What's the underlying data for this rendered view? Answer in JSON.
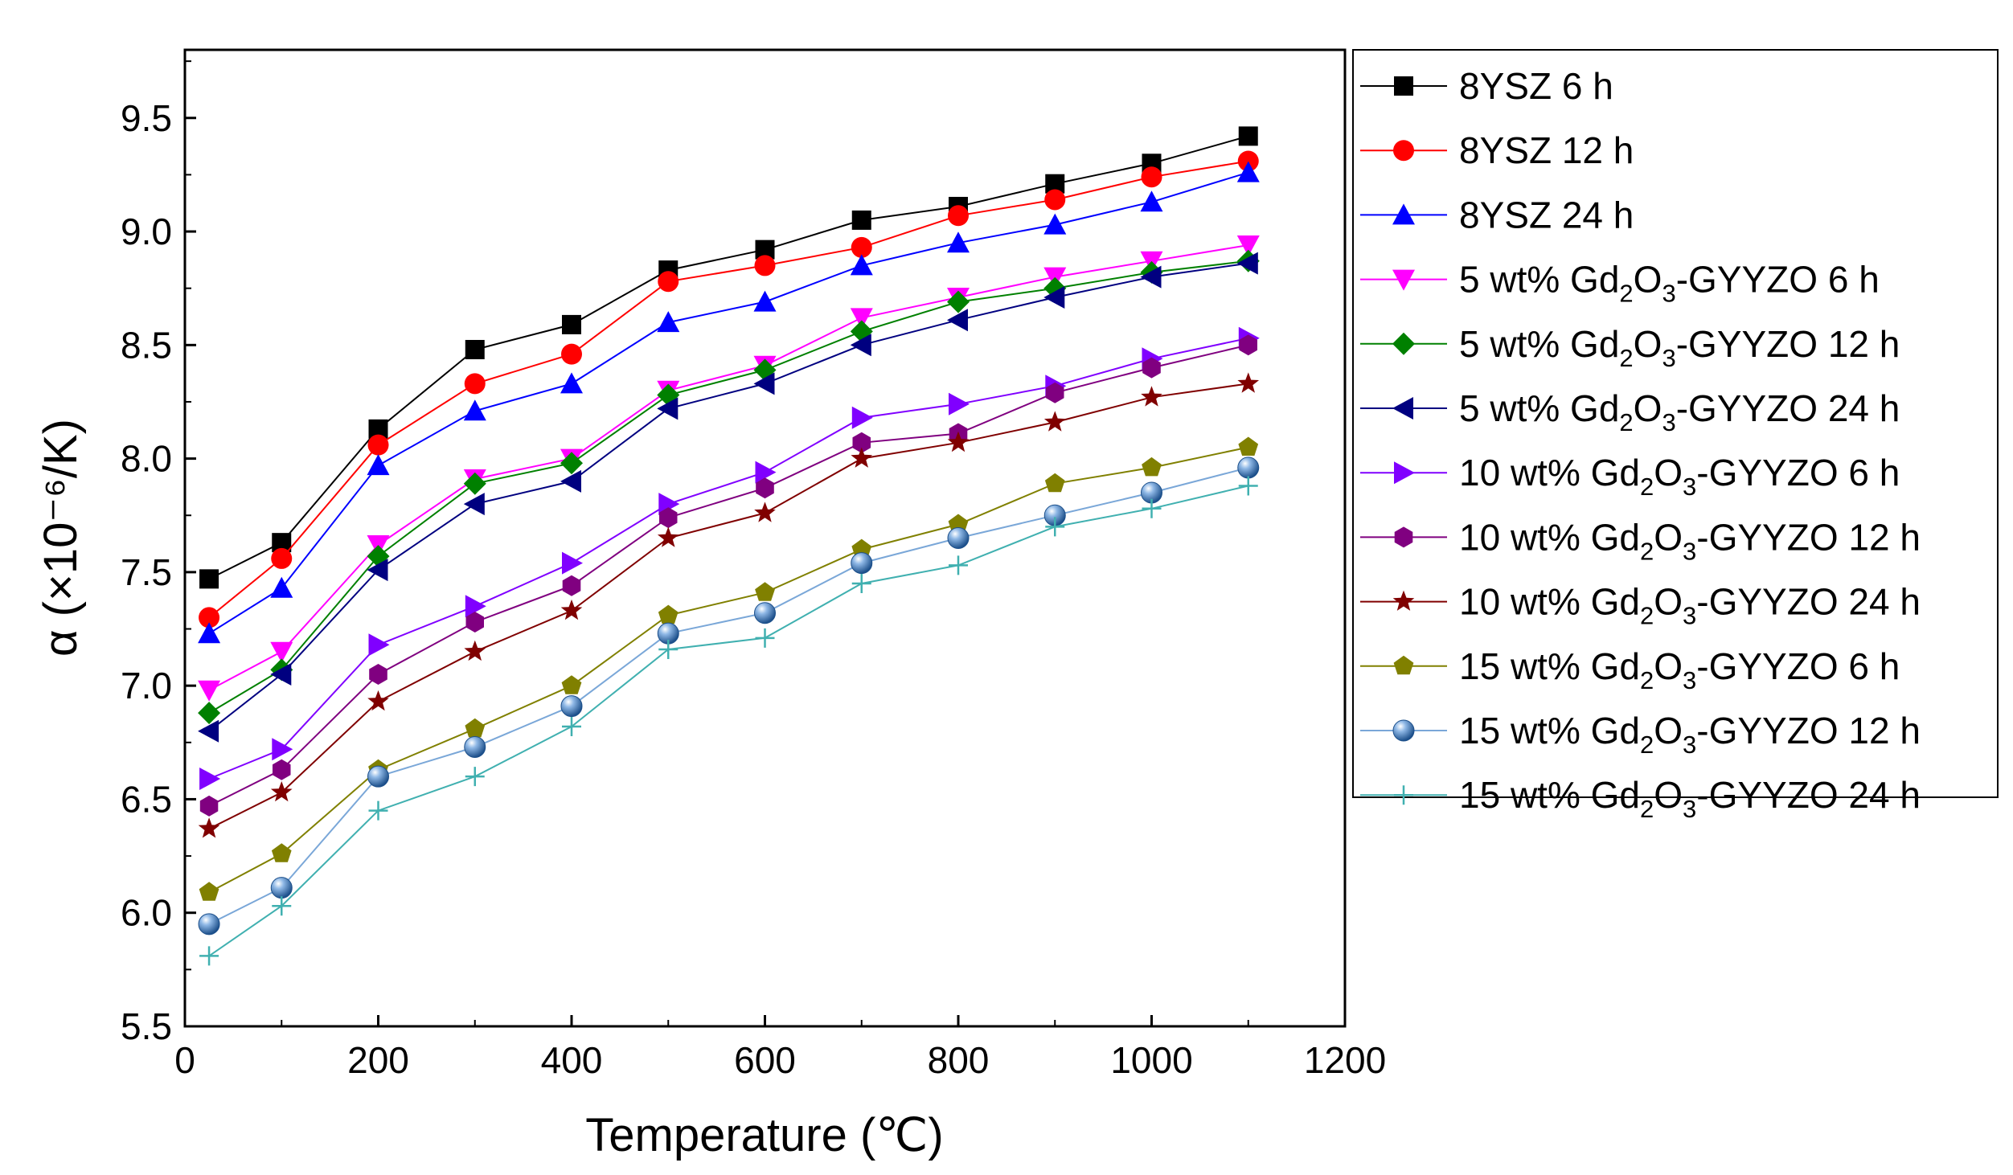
{
  "chart_data": {
    "type": "line",
    "title": "",
    "xlabel": "Temperature (℃)",
    "ylabel": "α (×10⁻⁶/K)",
    "xlim": [
      0,
      1200
    ],
    "ylim": [
      5.5,
      9.8
    ],
    "xticks": [
      0,
      200,
      400,
      600,
      800,
      1000,
      1200
    ],
    "xtick_labels": [
      "0",
      "200",
      "400",
      "600",
      "800",
      "1000",
      "1200"
    ],
    "yticks": [
      5.5,
      6.0,
      6.5,
      7.0,
      7.5,
      8.0,
      8.5,
      9.0,
      9.5
    ],
    "ytick_labels": [
      "5.5",
      "6.0",
      "6.5",
      "7.0",
      "7.5",
      "8.0",
      "8.5",
      "9.0",
      "9.5"
    ],
    "grid": false,
    "legend_position": "right",
    "x": [
      25,
      100,
      200,
      300,
      400,
      500,
      600,
      700,
      800,
      900,
      1000,
      1100
    ],
    "series": [
      {
        "name": "8YSZ 6 h",
        "prefix": "8YSZ 6 h",
        "sub": "",
        "mid": "",
        "sub2": "",
        "suffix": "",
        "color": "#000000",
        "line_color": "#000000",
        "marker": "square",
        "values": [
          7.47,
          7.63,
          8.13,
          8.48,
          8.59,
          8.83,
          8.92,
          9.05,
          9.11,
          9.21,
          9.3,
          9.42
        ]
      },
      {
        "name": "8YSZ 12 h",
        "prefix": "8YSZ 12 h",
        "sub": "",
        "mid": "",
        "sub2": "",
        "suffix": "",
        "color": "#ff0000",
        "line_color": "#ff0000",
        "marker": "circle",
        "values": [
          7.3,
          7.56,
          8.06,
          8.33,
          8.46,
          8.78,
          8.85,
          8.93,
          9.07,
          9.14,
          9.24,
          9.31
        ]
      },
      {
        "name": "8YSZ 24 h",
        "prefix": "8YSZ 24 h",
        "sub": "",
        "mid": "",
        "sub2": "",
        "suffix": "",
        "color": "#0000ff",
        "line_color": "#0000ff",
        "marker": "triangle-up",
        "values": [
          7.23,
          7.43,
          7.97,
          8.21,
          8.33,
          8.6,
          8.69,
          8.85,
          8.95,
          9.03,
          9.13,
          9.26
        ]
      },
      {
        "name": "5 wt% Gd2O3-GYYZO 6 h",
        "prefix": "5 wt% Gd",
        "sub": "2",
        "mid": "O",
        "sub2": "3",
        "suffix": "-GYYZO 6 h",
        "color": "#ff00ff",
        "line_color": "#ff00ff",
        "marker": "triangle-down",
        "values": [
          6.98,
          7.15,
          7.62,
          7.91,
          8.0,
          8.3,
          8.41,
          8.62,
          8.71,
          8.8,
          8.87,
          8.94
        ]
      },
      {
        "name": "5 wt% Gd2O3-GYYZO 12 h",
        "prefix": "5 wt% Gd",
        "sub": "2",
        "mid": "O",
        "sub2": "3",
        "suffix": "-GYYZO 12 h",
        "color": "#008000",
        "line_color": "#008000",
        "marker": "diamond",
        "values": [
          6.88,
          7.07,
          7.57,
          7.89,
          7.98,
          8.28,
          8.39,
          8.56,
          8.69,
          8.75,
          8.82,
          8.87
        ]
      },
      {
        "name": "5 wt% Gd2O3-GYYZO 24 h",
        "prefix": "5 wt% Gd",
        "sub": "2",
        "mid": "O",
        "sub2": "3",
        "suffix": "-GYYZO 24 h",
        "color": "#000080",
        "line_color": "#000080",
        "marker": "triangle-left",
        "values": [
          6.8,
          7.05,
          7.51,
          7.8,
          7.9,
          8.22,
          8.33,
          8.5,
          8.61,
          8.71,
          8.8,
          8.86
        ]
      },
      {
        "name": "10 wt% Gd2O3-GYYZO 6 h",
        "prefix": "10 wt% Gd",
        "sub": "2",
        "mid": "O",
        "sub2": "3",
        "suffix": "-GYYZO 6 h",
        "color": "#8000ff",
        "line_color": "#8000ff",
        "marker": "triangle-right",
        "values": [
          6.59,
          6.72,
          7.18,
          7.35,
          7.54,
          7.8,
          7.94,
          8.18,
          8.24,
          8.32,
          8.44,
          8.53
        ]
      },
      {
        "name": "10 wt% Gd2O3-GYYZO 12 h",
        "prefix": "10 wt% Gd",
        "sub": "2",
        "mid": "O",
        "sub2": "3",
        "suffix": "-GYYZO 12 h",
        "color": "#800080",
        "line_color": "#800080",
        "marker": "hexagon",
        "values": [
          6.47,
          6.63,
          7.05,
          7.28,
          7.44,
          7.74,
          7.87,
          8.07,
          8.11,
          8.29,
          8.4,
          8.5
        ]
      },
      {
        "name": "10 wt% Gd2O3-GYYZO 24 h",
        "prefix": "10 wt% Gd",
        "sub": "2",
        "mid": "O",
        "sub2": "3",
        "suffix": "-GYYZO 24 h",
        "color": "#800000",
        "line_color": "#800000",
        "marker": "star",
        "values": [
          6.37,
          6.53,
          6.93,
          7.15,
          7.33,
          7.65,
          7.76,
          8.0,
          8.07,
          8.16,
          8.27,
          8.33
        ]
      },
      {
        "name": "15 wt% Gd2O3-GYYZO 6 h",
        "prefix": "15 wt% Gd",
        "sub": "2",
        "mid": "O",
        "sub2": "3",
        "suffix": "-GYYZO 6 h",
        "color": "#808000",
        "line_color": "#808000",
        "marker": "pentagon",
        "values": [
          6.09,
          6.26,
          6.63,
          6.81,
          7.0,
          7.31,
          7.41,
          7.6,
          7.71,
          7.89,
          7.96,
          8.05
        ]
      },
      {
        "name": "15 wt% Gd2O3-GYYZO 12 h",
        "prefix": "15 wt% Gd",
        "sub": "2",
        "mid": "O",
        "sub2": "3",
        "suffix": "-GYYZO 12 h",
        "color": "#2f6fb0",
        "line_color": "#7aa7d8",
        "marker": "sphere",
        "values": [
          5.95,
          6.11,
          6.6,
          6.73,
          6.91,
          7.23,
          7.32,
          7.54,
          7.65,
          7.75,
          7.85,
          7.96
        ]
      },
      {
        "name": "15 wt% Gd2O3-GYYZO 24 h",
        "prefix": "15 wt% Gd",
        "sub": "2",
        "mid": "O",
        "sub2": "3",
        "suffix": "-GYYZO 24 h",
        "color": "#40b0b0",
        "line_color": "#40b0b0",
        "marker": "plus",
        "values": [
          5.81,
          6.03,
          6.45,
          6.6,
          6.82,
          7.16,
          7.21,
          7.45,
          7.53,
          7.7,
          7.78,
          7.88
        ]
      }
    ]
  }
}
